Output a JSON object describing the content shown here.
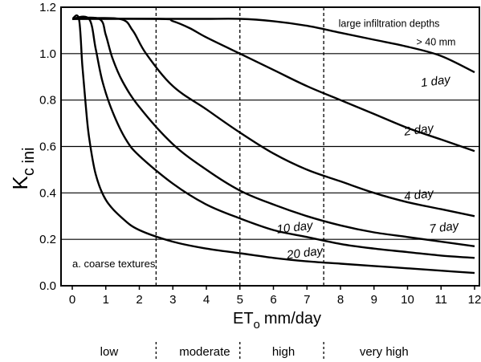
{
  "chart_data": {
    "type": "line",
    "ylabel": "K",
    "ylabel_sub": "c ini",
    "xlabel_main": "ET",
    "xlabel_sub": "o",
    "xlabel_unit": "mm/day",
    "xlim": [
      -0.3,
      12.2
    ],
    "ylim": [
      0.0,
      1.2
    ],
    "x_ticks": [
      "0",
      "1",
      "2",
      "3",
      "4",
      "5",
      "6",
      "7",
      "8",
      "9",
      "10",
      "11",
      "12"
    ],
    "y_ticks": [
      "0.0",
      "0.2",
      "0.4",
      "0.6",
      "0.8",
      "1.0",
      "1.2"
    ],
    "grid": "horizontal",
    "dashed_verticals": [
      2.5,
      5,
      7.5
    ],
    "series": [
      {
        "name": "large infiltration depths > 40 mm",
        "x": [
          0,
          2,
          3,
          4,
          5,
          6,
          7,
          8,
          9,
          10,
          11,
          12
        ],
        "y": [
          1.15,
          1.15,
          1.15,
          1.15,
          1.15,
          1.14,
          1.12,
          1.09,
          1.06,
          1.03,
          0.99,
          0.92
        ]
      },
      {
        "name": "1 day",
        "x": [
          0,
          2.6,
          3,
          3.5,
          4,
          5,
          6,
          7,
          8,
          9,
          10,
          11,
          12
        ],
        "y": [
          1.15,
          1.15,
          1.14,
          1.11,
          1.07,
          1.0,
          0.93,
          0.86,
          0.8,
          0.74,
          0.68,
          0.63,
          0.58
        ]
      },
      {
        "name": "2 day",
        "x": [
          0,
          1.4,
          1.8,
          2.2,
          3,
          4,
          5,
          6,
          7,
          8,
          9,
          10,
          11,
          12
        ],
        "y": [
          1.15,
          1.15,
          1.1,
          1.0,
          0.86,
          0.76,
          0.66,
          0.57,
          0.5,
          0.45,
          0.4,
          0.36,
          0.33,
          0.3
        ]
      },
      {
        "name": "4 day",
        "x": [
          0,
          0.8,
          1.0,
          1.2,
          1.5,
          2,
          3,
          4,
          5,
          6,
          7,
          8,
          9,
          10,
          11,
          12
        ],
        "y": [
          1.15,
          1.15,
          1.08,
          0.98,
          0.88,
          0.77,
          0.61,
          0.5,
          0.41,
          0.35,
          0.3,
          0.26,
          0.23,
          0.21,
          0.19,
          0.17
        ]
      },
      {
        "name": "7 day",
        "x": [
          0,
          0.5,
          0.7,
          0.9,
          1.2,
          1.6,
          2,
          3,
          4,
          5,
          6,
          7,
          8,
          9,
          10,
          11,
          12
        ],
        "y": [
          1.15,
          1.15,
          1.02,
          0.88,
          0.75,
          0.63,
          0.56,
          0.44,
          0.35,
          0.29,
          0.24,
          0.21,
          0.18,
          0.16,
          0.145,
          0.13,
          0.12
        ]
      },
      {
        "name": "10 day",
        "x": [
          0,
          0.2,
          0.3,
          0.4,
          0.5,
          0.7,
          1.0,
          1.5,
          2,
          3,
          4,
          5,
          6,
          7,
          8,
          9,
          10,
          11,
          12
        ],
        "y": [
          1.15,
          1.15,
          0.95,
          0.78,
          0.64,
          0.48,
          0.37,
          0.29,
          0.24,
          0.19,
          0.16,
          0.14,
          0.12,
          0.105,
          0.095,
          0.085,
          0.075,
          0.065,
          0.055
        ]
      }
    ],
    "curve_labels": [
      {
        "text": "large infiltration depths",
        "x": 9.45,
        "y": 1.115
      },
      {
        "text": "> 40 mm",
        "x": 10.85,
        "y": 1.035
      },
      {
        "text": "1 day",
        "x": 10.85,
        "y": 0.865
      },
      {
        "text": "2 day",
        "x": 10.35,
        "y": 0.655
      },
      {
        "text": "4 day",
        "x": 10.35,
        "y": 0.375
      },
      {
        "text": "7 day",
        "x": 11.1,
        "y": 0.235
      },
      {
        "text": "10 day",
        "x": 6.65,
        "y": 0.235
      },
      {
        "text": "20 day",
        "x": 6.95,
        "y": 0.125
      }
    ],
    "annotation": "a.  coarse textures"
  },
  "categories_band": [
    {
      "label": "low",
      "x": 1.1
    },
    {
      "label": "moderate",
      "x": 3.95
    },
    {
      "label": "high",
      "x": 6.3
    },
    {
      "label": "very high",
      "x": 9.3
    }
  ]
}
